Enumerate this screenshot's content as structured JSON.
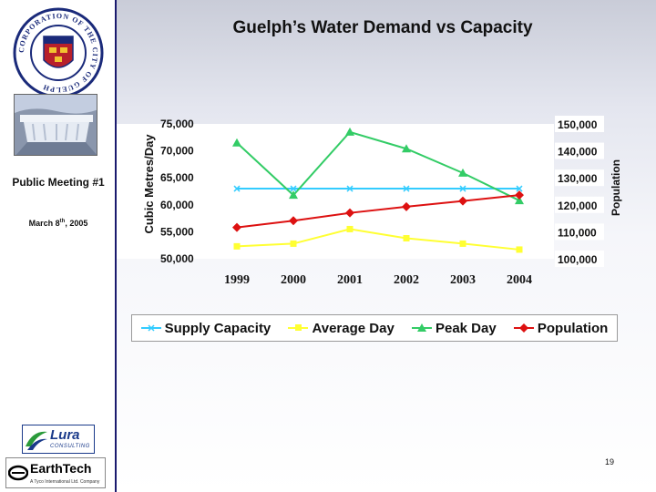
{
  "title": "Guelph’s Water Demand vs Capacity",
  "sidebar": {
    "seal_text": "CORPORATION OF THE CITY OF GUELPH",
    "meeting": "Public Meeting #1",
    "date_month": "March 8",
    "date_sup": "th",
    "date_year": ", 2005",
    "logo_lura": "Lura",
    "logo_lura_sub": "CONSULTING",
    "logo_earthtech": "EarthTech",
    "logo_earthtech_tag": "A Tyco International Ltd. Company"
  },
  "page_number": "19",
  "colors": {
    "supply": "#33ccff",
    "average": "#ffff33",
    "peak": "#33cc66",
    "population": "#dd1111",
    "axis_box": "#ffffff"
  },
  "chart_data": {
    "type": "line",
    "categories": [
      "1999",
      "2000",
      "2001",
      "2002",
      "2003",
      "2004"
    ],
    "ylabel": "Cubic Metres/Day",
    "y2label": "Population",
    "ylim": [
      50000,
      75000
    ],
    "y2lim": [
      100000,
      150000
    ],
    "y_ticks": [
      "50,000",
      "55,000",
      "60,000",
      "65,000",
      "70,000",
      "75,000"
    ],
    "y2_ticks": [
      "100,000",
      "110,000",
      "120,000",
      "130,000",
      "140,000",
      "150,000"
    ],
    "y_tick_values": [
      50000,
      55000,
      60000,
      65000,
      70000,
      75000
    ],
    "series": [
      {
        "name": "Supply Capacity",
        "axis": "left",
        "color": "#33ccff",
        "marker": "x",
        "values": [
          63000,
          63000,
          63000,
          63000,
          63000,
          63000
        ]
      },
      {
        "name": "Average Day",
        "axis": "left",
        "color": "#ffff33",
        "marker": "square",
        "values": [
          52300,
          52800,
          55500,
          53800,
          52800,
          51700
        ]
      },
      {
        "name": "Peak Day",
        "axis": "left",
        "color": "#33cc66",
        "marker": "triangle",
        "values": [
          71500,
          61800,
          73500,
          70400,
          65900,
          60800
        ]
      },
      {
        "name": "Population",
        "axis": "right",
        "color": "#dd1111",
        "marker": "diamond",
        "values": [
          111600,
          114100,
          117000,
          119300,
          121400,
          123600
        ]
      }
    ]
  }
}
